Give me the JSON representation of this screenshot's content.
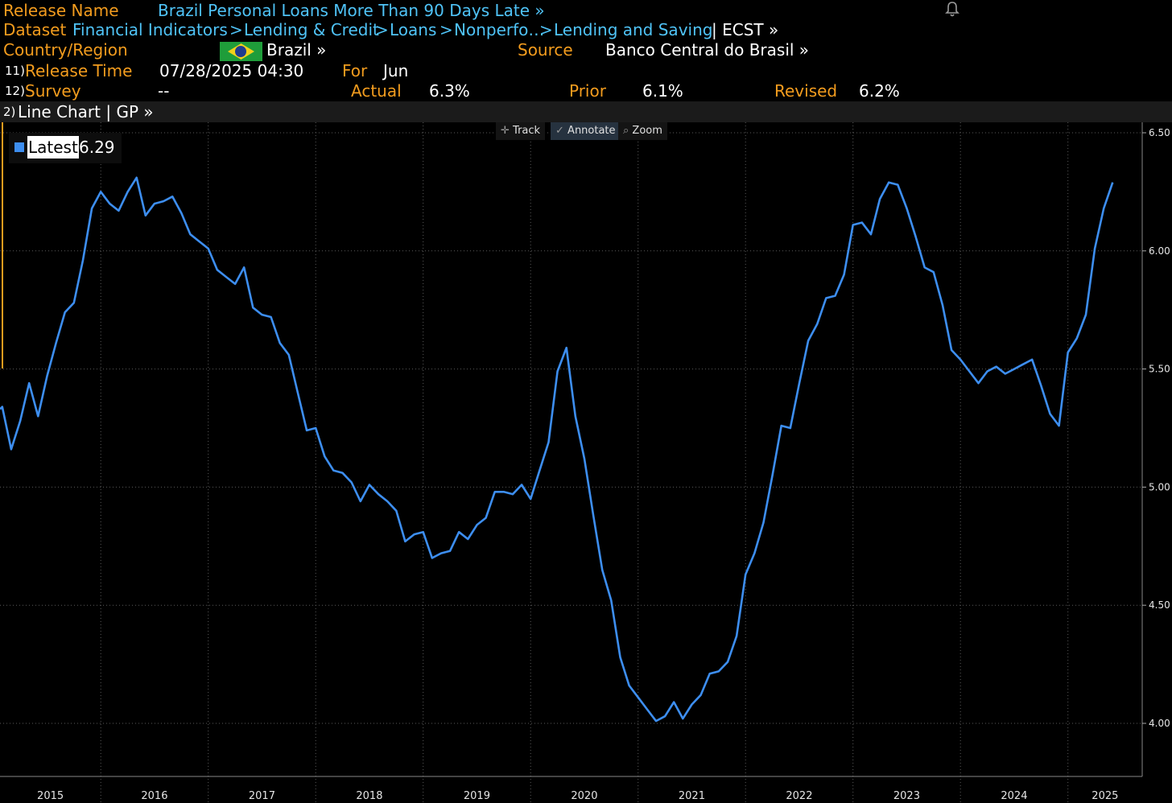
{
  "header": {
    "release_name_label": "Release Name",
    "release_name": "Brazil Personal Loans More Than 90 Days Late »",
    "dataset_label": "Dataset",
    "dataset_path": [
      "Financial Indicators",
      "Lending & Credit",
      "Loans",
      "Nonperfo…",
      "Lending and Saving"
    ],
    "dataset_sep": ">",
    "dataset_suffix": "| ECST »",
    "country_label": "Country/Region",
    "country": "Brazil »",
    "source_label": "Source",
    "source": "Banco Central do Brasil »",
    "release_time_num": "11)",
    "release_time_label": "Release Time",
    "release_time": "07/28/2025 04:30",
    "for_label": "For",
    "for_value": "Jun",
    "survey_num": "12)",
    "survey_label": "Survey",
    "survey_value": "--",
    "actual_label": "Actual",
    "actual_value": "6.3%",
    "prior_label": "Prior",
    "prior_value": "6.1%",
    "revised_label": "Revised",
    "revised_value": "6.2%"
  },
  "toolbar": {
    "num": "2)",
    "title": "Line Chart | GP »",
    "track": "Track",
    "annotate": "Annotate",
    "zoom": "Zoom"
  },
  "legend": {
    "name": "Latest",
    "value": "6.29"
  },
  "colors": {
    "line": "#3d8ef0",
    "grid": "#5a5a5a",
    "orange": "#f39c1e",
    "cyan": "#4fc3f7"
  },
  "chart_data": {
    "type": "line",
    "x_start": "2015-01",
    "frequency": "monthly",
    "y_ticks": [
      "6.50",
      "6.00",
      "5.50",
      "5.00",
      "4.50",
      "4.00"
    ],
    "x_ticks": [
      "2015",
      "2016",
      "2017",
      "2018",
      "2019",
      "2020",
      "2021",
      "2022",
      "2023",
      "2024",
      "2025"
    ],
    "ylim": [
      3.7,
      6.55
    ],
    "grid": true,
    "series": [
      {
        "name": "Latest",
        "values": [
          5.33,
          5.34,
          5.16,
          5.28,
          5.44,
          5.3,
          5.47,
          5.61,
          5.74,
          5.78,
          5.96,
          6.18,
          6.25,
          6.2,
          6.17,
          6.25,
          6.31,
          6.15,
          6.2,
          6.21,
          6.23,
          6.16,
          6.07,
          6.04,
          6.01,
          5.92,
          5.89,
          5.86,
          5.93,
          5.76,
          5.73,
          5.72,
          5.61,
          5.56,
          5.4,
          5.24,
          5.25,
          5.13,
          5.07,
          5.06,
          5.02,
          4.94,
          5.01,
          4.97,
          4.94,
          4.9,
          4.77,
          4.8,
          4.81,
          4.7,
          4.72,
          4.73,
          4.81,
          4.78,
          4.84,
          4.87,
          4.98,
          4.98,
          4.97,
          5.01,
          4.95,
          5.07,
          5.19,
          5.49,
          5.59,
          5.3,
          5.12,
          4.88,
          4.65,
          4.52,
          4.28,
          4.16,
          4.11,
          4.06,
          4.01,
          4.03,
          4.09,
          4.02,
          4.08,
          4.12,
          4.21,
          4.22,
          4.26,
          4.37,
          4.63,
          4.72,
          4.85,
          5.05,
          5.26,
          5.25,
          5.44,
          5.62,
          5.69,
          5.8,
          5.81,
          5.9,
          6.11,
          6.12,
          6.07,
          6.22,
          6.29,
          6.28,
          6.18,
          6.06,
          5.93,
          5.91,
          5.77,
          5.58,
          5.54,
          5.49,
          5.44,
          5.49,
          5.51,
          5.48,
          5.5,
          5.52,
          5.54,
          5.43,
          5.31,
          5.26,
          5.57,
          5.63,
          5.73,
          6.01,
          6.18,
          6.29
        ]
      }
    ]
  }
}
